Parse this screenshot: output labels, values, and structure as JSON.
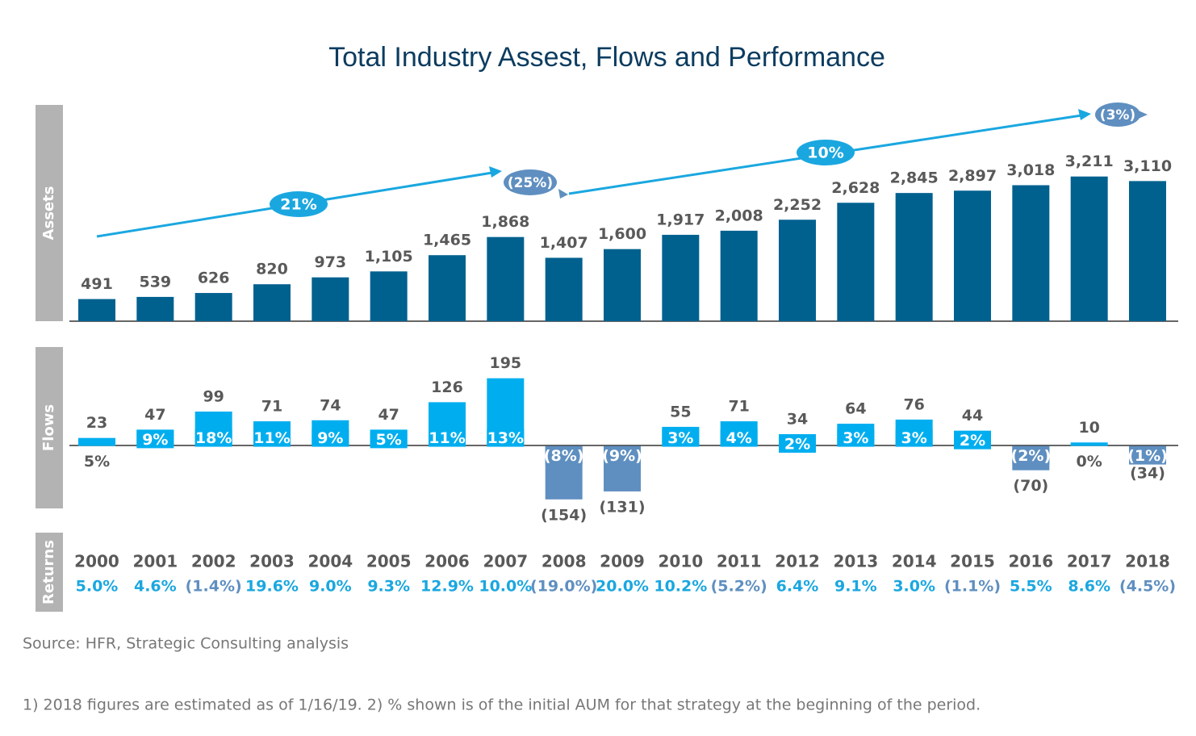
{
  "chart_data": [
    {
      "type": "bar",
      "title": "Total Industry Assest, Flows and Performance",
      "ylabel": "Assets",
      "categories": [
        "2000",
        "2001",
        "2002",
        "2003",
        "2004",
        "2005",
        "2006",
        "2007",
        "2008",
        "2009",
        "2010",
        "2011",
        "2012",
        "2013",
        "2014",
        "2015",
        "2016",
        "2017",
        "2018"
      ],
      "values": [
        491,
        539,
        626,
        820,
        973,
        1105,
        1465,
        1868,
        1407,
        1600,
        1917,
        2008,
        2252,
        2628,
        2845,
        2897,
        3018,
        3211,
        3110
      ],
      "value_labels": [
        "491",
        "539",
        "626",
        "820",
        "973",
        "1,105",
        "1,465",
        "1,868",
        "1,407",
        "1,600",
        "1,917",
        "2,008",
        "2,252",
        "2,628",
        "2,845",
        "2,897",
        "3,018",
        "3,211",
        "3,110"
      ],
      "color": "#00618f",
      "ylim": [
        0,
        4800
      ],
      "annotations": [
        "21%",
        "(25%)",
        "10%",
        "(3%)"
      ]
    },
    {
      "type": "bar",
      "ylabel": "Flows",
      "values": [
        23,
        47,
        99,
        71,
        74,
        47,
        126,
        195,
        -154,
        -131,
        55,
        71,
        34,
        64,
        76,
        44,
        -70,
        10,
        -34
      ],
      "value_labels": [
        "23",
        "47",
        "99",
        "71",
        "74",
        "47",
        "126",
        "195",
        "(154)",
        "(131)",
        "55",
        "71",
        "34",
        "64",
        "76",
        "44",
        "(70)",
        "10",
        "(34)"
      ],
      "rates": [
        5,
        9,
        18,
        11,
        9,
        5,
        11,
        13,
        -8,
        -9,
        3,
        4,
        2,
        3,
        3,
        2,
        -2,
        0,
        -1
      ],
      "rate_labels": [
        "5%",
        "9%",
        "18%",
        "11%",
        "9%",
        "5%",
        "11%",
        "13%",
        "(8%)",
        "(9%)",
        "3%",
        "4%",
        "2%",
        "3%",
        "3%",
        "2%",
        "(2%)",
        "0%",
        "(1%)"
      ],
      "colors": {
        "positive": "#00aeef",
        "negative": "#5f8fc0"
      },
      "ylim": [
        -180,
        285
      ]
    },
    {
      "type": "label-row",
      "ylabel": "Returns",
      "values": [
        5.0,
        4.6,
        -1.4,
        19.6,
        9.0,
        9.3,
        12.9,
        10.0,
        -19.0,
        20.0,
        10.2,
        -5.2,
        6.4,
        9.1,
        3.0,
        -1.1,
        5.5,
        8.6,
        -4.5
      ],
      "value_labels": [
        "5.0%",
        "4.6%",
        "(1.4%)",
        "19.6%",
        "9.0%",
        "9.3%",
        "12.9%",
        "10.0%",
        "(19.0%)",
        "20.0%",
        "10.2%",
        "(5.2%)",
        "6.4%",
        "9.1%",
        "3.0%",
        "(1.1%)",
        "5.5%",
        "8.6%",
        "(4.5%)"
      ],
      "colors": {
        "positive": "#1aa7e0",
        "negative": "#5f8fc0"
      }
    }
  ],
  "source": "Source: HFR, Strategic Consulting analysis",
  "footnote": "1) 2018 figures are estimated as of 1/16/19. 2) % shown is of the initial AUM for that strategy at the beginning of the period."
}
